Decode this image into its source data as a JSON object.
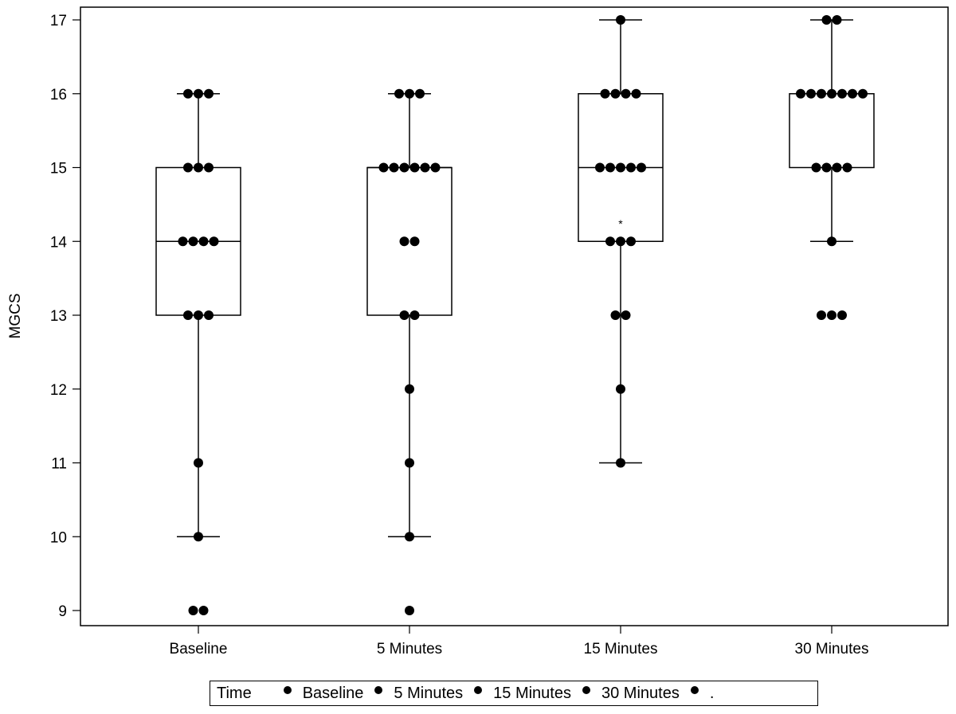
{
  "chart_data": {
    "type": "box",
    "title": "",
    "xlabel": "",
    "ylabel": "MGCS",
    "ylim": [
      9,
      17
    ],
    "yticks": [
      9,
      10,
      11,
      12,
      13,
      14,
      15,
      16,
      17
    ],
    "categories": [
      "Baseline",
      "5 Minutes",
      "15 Minutes",
      "30 Minutes"
    ],
    "grid": false,
    "legend_position": "bottom",
    "series": [
      {
        "name": "Baseline",
        "box": {
          "q1": 13,
          "median": 14,
          "q3": 15,
          "whisker_low": 10,
          "whisker_high": 16
        },
        "points": [
          {
            "value": 16,
            "count": 3
          },
          {
            "value": 15,
            "count": 3
          },
          {
            "value": 14,
            "count": 4
          },
          {
            "value": 13,
            "count": 3
          },
          {
            "value": 11,
            "count": 1
          },
          {
            "value": 10,
            "count": 1
          },
          {
            "value": 9,
            "count": 2
          }
        ],
        "mean": null
      },
      {
        "name": "5 Minutes",
        "box": {
          "q1": 13,
          "median": 15,
          "q3": 15,
          "whisker_low": 10,
          "whisker_high": 16
        },
        "points": [
          {
            "value": 16,
            "count": 3
          },
          {
            "value": 15,
            "count": 6
          },
          {
            "value": 14,
            "count": 2
          },
          {
            "value": 13,
            "count": 2
          },
          {
            "value": 12,
            "count": 1
          },
          {
            "value": 11,
            "count": 1
          },
          {
            "value": 10,
            "count": 1
          },
          {
            "value": 9,
            "count": 1
          }
        ],
        "mean": null
      },
      {
        "name": "15 Minutes",
        "box": {
          "q1": 14,
          "median": 15,
          "q3": 16,
          "whisker_low": 11,
          "whisker_high": 17
        },
        "points": [
          {
            "value": 17,
            "count": 1
          },
          {
            "value": 16,
            "count": 4
          },
          {
            "value": 15,
            "count": 5
          },
          {
            "value": 14,
            "count": 3
          },
          {
            "value": 13,
            "count": 2
          },
          {
            "value": 12,
            "count": 1
          },
          {
            "value": 11,
            "count": 1
          }
        ],
        "mean": 14.27
      },
      {
        "name": "30 Minutes",
        "box": {
          "q1": 15,
          "median": 16,
          "q3": 16,
          "whisker_low": 14,
          "whisker_high": 17
        },
        "points": [
          {
            "value": 17,
            "count": 2
          },
          {
            "value": 16,
            "count": 7
          },
          {
            "value": 15,
            "count": 4
          },
          {
            "value": 14,
            "count": 1
          },
          {
            "value": 13,
            "count": 3
          }
        ],
        "mean": null
      }
    ]
  },
  "legend": {
    "title": "Time",
    "entries": [
      "Baseline",
      "5 Minutes",
      "15 Minutes",
      "30 Minutes",
      "."
    ]
  }
}
